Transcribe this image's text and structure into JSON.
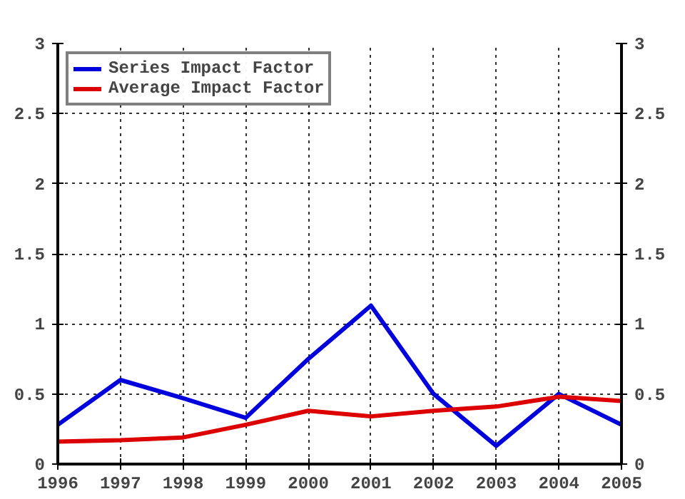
{
  "chart_data": {
    "type": "line",
    "x": [
      1996,
      1997,
      1998,
      1999,
      2000,
      2001,
      2002,
      2003,
      2004,
      2005
    ],
    "xlim": [
      1996,
      2005
    ],
    "xticks": [
      1996,
      1997,
      1998,
      1999,
      2000,
      2001,
      2002,
      2003,
      2004,
      2005
    ],
    "ylim": [
      0,
      3
    ],
    "yticks": [
      0,
      {
        "value": 0.5,
        "label": "0.5"
      },
      1,
      {
        "value": 1.5,
        "label": "1.5"
      },
      2,
      {
        "value": 2.5,
        "label": "2.5"
      },
      3
    ],
    "y2lim": [
      0,
      3
    ],
    "y2ticks": [
      0,
      {
        "value": 0.5,
        "label": "0.5"
      },
      1,
      {
        "value": 1.5,
        "label": "1.5"
      },
      2,
      {
        "value": 2.5,
        "label": "2.5"
      },
      3
    ],
    "grid": true,
    "legend": "top left",
    "marker": "none",
    "line_style": "solid",
    "series": [
      {
        "name": "Series Impact Factor",
        "color": "#0000dd",
        "values": [
          0.28,
          0.6,
          0.47,
          0.33,
          0.75,
          1.13,
          0.5,
          0.13,
          0.5,
          0.28
        ]
      },
      {
        "name": "Average Impact Factor",
        "color": "#dd0000",
        "values": [
          0.16,
          0.17,
          0.19,
          0.28,
          0.38,
          0.34,
          0.38,
          0.41,
          0.48,
          0.45
        ]
      }
    ]
  }
}
